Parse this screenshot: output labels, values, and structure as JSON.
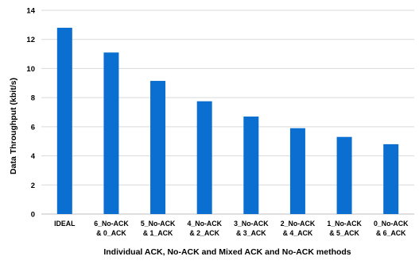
{
  "chart_data": {
    "type": "bar",
    "title": "",
    "xlabel": "Individual ACK, No-ACK and Mixed ACK and No-ACK methods",
    "ylabel": "Data Throughput (kbit/s)",
    "ylim": [
      0,
      14
    ],
    "yticks": [
      0,
      2,
      4,
      6,
      8,
      10,
      12,
      14
    ],
    "grid": "horizontal",
    "legend": "none",
    "bar_color": "#0a6fd0",
    "categories": [
      [
        "IDEAL"
      ],
      [
        "6_No-ACK",
        "& 0_ACK"
      ],
      [
        "5_No-ACK",
        "& 1_ACK"
      ],
      [
        "4_No-ACK",
        "& 2_ACK"
      ],
      [
        "3_No-ACK",
        "& 3_ACK"
      ],
      [
        "2_No-ACK",
        "& 4_ACK"
      ],
      [
        "1_No-ACK",
        "& 5_ACK"
      ],
      [
        "0_No-ACK",
        "& 6_ACK"
      ]
    ],
    "values": [
      12.8,
      11.1,
      9.15,
      7.75,
      6.7,
      5.9,
      5.3,
      4.8
    ]
  }
}
